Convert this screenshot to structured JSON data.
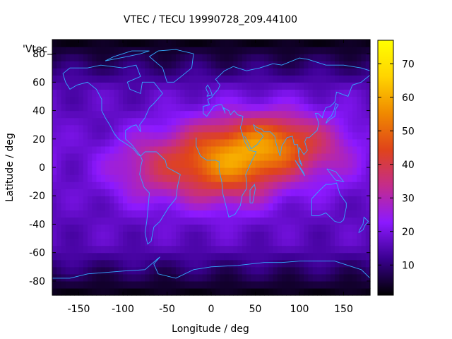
{
  "chart_data": {
    "type": "heatmap",
    "title": "VTEC / TECU 19990728_209.44100",
    "xlabel": "Longitude / deg",
    "ylabel": "Latitude / deg",
    "key_label": "'Vtec_",
    "xlim": [
      -180,
      180
    ],
    "ylim": [
      -90,
      90
    ],
    "xticks": [
      -150,
      -100,
      -50,
      0,
      50,
      100,
      150
    ],
    "yticks": [
      -80,
      -60,
      -40,
      -20,
      0,
      20,
      40,
      60,
      80
    ],
    "colorbar": {
      "range": [
        1,
        77
      ],
      "ticks": [
        10,
        20,
        30,
        40,
        50,
        60,
        70
      ],
      "palette": [
        "#000000",
        "#3a0090",
        "#8c19ff",
        "#c42c8c",
        "#e0441a",
        "#f08a00",
        "#ffd400",
        "#ffff00"
      ]
    },
    "field_model": {
      "background_vtec": 16,
      "peaks": [
        {
          "lon": 20,
          "lat": 5,
          "vtec": 58,
          "sigma_lon": 45,
          "sigma_lat": 20
        },
        {
          "lon": 80,
          "lat": 18,
          "vtec": 42,
          "sigma_lon": 35,
          "sigma_lat": 15
        },
        {
          "lon": -70,
          "lat": 0,
          "vtec": 32,
          "sigma_lon": 40,
          "sigma_lat": 18
        },
        {
          "lon": 140,
          "lat": 10,
          "vtec": 26,
          "sigma_lon": 30,
          "sigma_lat": 20
        }
      ],
      "polar_min_vtec": 2
    },
    "grid": false,
    "overlay": "coastlines"
  },
  "colors": {
    "coastline": "#33aaff",
    "frame": "#000000"
  }
}
